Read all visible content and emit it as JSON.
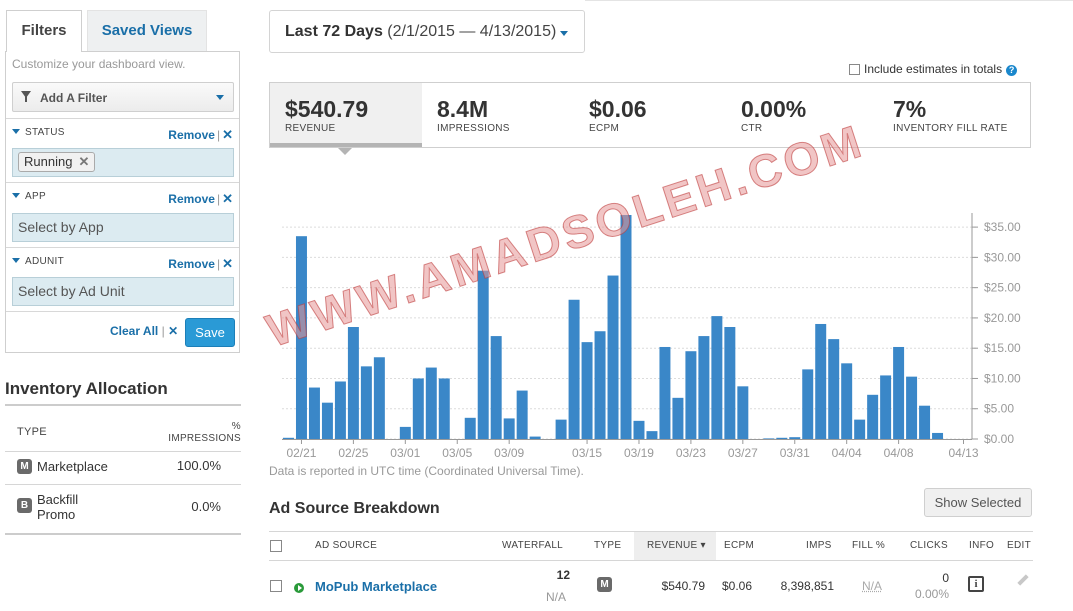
{
  "tabs": {
    "filters": "Filters",
    "saved_views": "Saved Views"
  },
  "filters": {
    "hint": "Customize your dashboard view.",
    "add_filter": "Add A Filter",
    "remove_label": "Remove",
    "remove_x": "✕",
    "status": {
      "label": "STATUS",
      "chip": "Running"
    },
    "app": {
      "label": "APP",
      "placeholder": "Select by App"
    },
    "adunit": {
      "label": "ADUNIT",
      "placeholder": "Select by Ad Unit"
    },
    "clear_all": "Clear All",
    "save": "Save"
  },
  "inventory": {
    "title": "Inventory Allocation",
    "col_type": "TYPE",
    "col_pct_1": "%",
    "col_pct_2": "IMPRESSIONS",
    "rows": [
      {
        "badge": "M",
        "name": "Marketplace",
        "value": "100.0%"
      },
      {
        "badge": "B",
        "name": "Backfill Promo",
        "value": "0.0%"
      }
    ]
  },
  "date_range": {
    "bold": "Last 72 Days",
    "range": "(2/1/2015 — 4/13/2015)"
  },
  "include_estimates": "Include estimates in totals",
  "help_icon": "?",
  "metrics": [
    {
      "value": "$540.79",
      "label": "REVENUE",
      "active": true
    },
    {
      "value": "8.4M",
      "label": "IMPRESSIONS"
    },
    {
      "value": "$0.06",
      "label": "ECPM"
    },
    {
      "value": "0.00%",
      "label": "CTR"
    },
    {
      "value": "7%",
      "label": "INVENTORY FILL RATE"
    }
  ],
  "utc_note": "Data is reported in UTC time (Coordinated Universal Time).",
  "watermark": "WWW.AMADSOLEH.COM",
  "colors": {
    "bar": "#3a87c8",
    "link": "#1a6fa8",
    "save": "#2a9ad6"
  },
  "chart_data": {
    "type": "bar",
    "x": [
      "02/20",
      "02/21",
      "02/22",
      "02/23",
      "02/24",
      "02/25",
      "02/26",
      "02/27",
      "02/28",
      "03/01",
      "03/02",
      "03/03",
      "03/04",
      "03/05",
      "03/06",
      "03/07",
      "03/08",
      "03/09",
      "03/10",
      "03/11",
      "03/12",
      "03/13",
      "03/14",
      "03/15",
      "03/16",
      "03/17",
      "03/18",
      "03/19",
      "03/20",
      "03/21",
      "03/22",
      "03/23",
      "03/24",
      "03/25",
      "03/26",
      "03/27",
      "03/28",
      "03/29",
      "03/30",
      "03/31",
      "04/01",
      "04/02",
      "04/03",
      "04/04",
      "04/05",
      "04/06",
      "04/07",
      "04/08",
      "04/09",
      "04/10",
      "04/11",
      "04/12",
      "04/13"
    ],
    "values": [
      0.2,
      33.5,
      8.5,
      6.0,
      9.5,
      18.5,
      12.0,
      13.5,
      0,
      2.0,
      10.0,
      11.8,
      10.0,
      0,
      3.5,
      27.8,
      17.0,
      3.4,
      8.0,
      0.4,
      0,
      3.2,
      23.0,
      16.0,
      17.8,
      27.0,
      37.0,
      3.0,
      1.3,
      15.2,
      6.8,
      14.5,
      17.0,
      20.3,
      18.5,
      8.7,
      0,
      0.1,
      0.2,
      0.3,
      11.5,
      19.0,
      16.5,
      12.5,
      3.2,
      7.3,
      10.5,
      15.2,
      10.3,
      5.5,
      1.0,
      0,
      0
    ],
    "x_ticks": [
      "02/21",
      "02/25",
      "03/01",
      "03/05",
      "03/09",
      "03/15",
      "03/19",
      "03/23",
      "03/27",
      "03/31",
      "04/04",
      "04/08",
      "04/13"
    ],
    "y_ticks": [
      "$0.00",
      "$5.00",
      "$10.00",
      "$15.00",
      "$20.00",
      "$25.00",
      "$30.00",
      "$35.00"
    ],
    "ylim": [
      0,
      37
    ],
    "y_axis_position": "right",
    "grid": true
  },
  "breakdown": {
    "title": "Ad Source Breakdown",
    "show_selected": "Show Selected",
    "columns": [
      "AD SOURCE",
      "WATERFALL",
      "TYPE",
      "REVENUE",
      "ECPM",
      "IMPS",
      "FILL %",
      "CLICKS",
      "INFO",
      "EDIT"
    ],
    "sort_caret": "▾",
    "row": {
      "name": "MoPub Marketplace",
      "waterfall_top": "12",
      "waterfall_bottom": "N/A",
      "type_badge": "M",
      "revenue": "$540.79",
      "ecpm": "$0.06",
      "imps": "8,398,851",
      "fill": "N/A",
      "clicks": "0",
      "clicks_pct": "0.00%",
      "info_icon": "i"
    }
  }
}
